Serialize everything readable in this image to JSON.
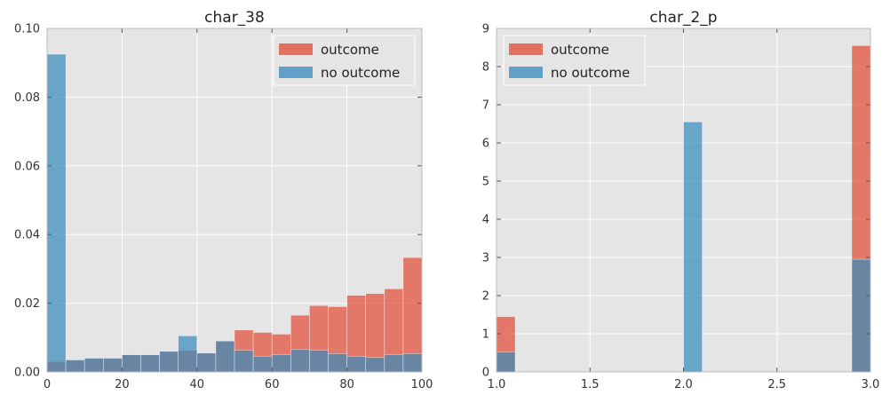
{
  "chart_data": [
    {
      "type": "bar",
      "title": "char_38",
      "xlabel": "",
      "ylabel": "",
      "xlim": [
        0,
        100
      ],
      "ylim": [
        0,
        0.1
      ],
      "xticks": [
        0,
        20,
        40,
        60,
        80,
        100
      ],
      "yticks": [
        0.0,
        0.02,
        0.04,
        0.06,
        0.08,
        0.1
      ],
      "xtick_labels": [
        "0",
        "20",
        "40",
        "60",
        "80",
        "100"
      ],
      "ytick_labels": [
        "0.00",
        "0.02",
        "0.04",
        "0.06",
        "0.08",
        "0.10"
      ],
      "grid": true,
      "legend_position": "top-right",
      "bin_edges": [
        0,
        5,
        10,
        15,
        20,
        25,
        30,
        35,
        40,
        45,
        50,
        55,
        60,
        65,
        70,
        75,
        80,
        85,
        90,
        95,
        100
      ],
      "series": [
        {
          "name": "outcome",
          "color": "#e24a33",
          "values": [
            0.003,
            0.0035,
            0.004,
            0.004,
            0.005,
            0.005,
            0.006,
            0.0063,
            0.0055,
            0.009,
            0.0122,
            0.0115,
            0.011,
            0.0165,
            0.0193,
            0.019,
            0.0223,
            0.0228,
            0.0242,
            0.0333
          ]
        },
        {
          "name": "no outcome",
          "color": "#348abd",
          "values": [
            0.0925,
            0.0035,
            0.004,
            0.004,
            0.005,
            0.005,
            0.006,
            0.0105,
            0.0055,
            0.009,
            0.0063,
            0.0045,
            0.005,
            0.0065,
            0.0063,
            0.0053,
            0.0045,
            0.0042,
            0.005,
            0.0053
          ]
        }
      ]
    },
    {
      "type": "bar",
      "title": "char_2_p",
      "xlabel": "",
      "ylabel": "",
      "xlim": [
        1.0,
        3.0
      ],
      "ylim": [
        0,
        9
      ],
      "xticks": [
        1.0,
        1.5,
        2.0,
        2.5,
        3.0
      ],
      "yticks": [
        0,
        1,
        2,
        3,
        4,
        5,
        6,
        7,
        8,
        9
      ],
      "xtick_labels": [
        "1.0",
        "1.5",
        "2.0",
        "2.5",
        "3.0"
      ],
      "ytick_labels": [
        "0",
        "1",
        "2",
        "3",
        "4",
        "5",
        "6",
        "7",
        "8",
        "9"
      ],
      "grid": true,
      "legend_position": "top-left",
      "bin_edges": [
        1.0,
        1.1,
        1.2,
        1.3,
        1.4,
        1.5,
        1.6,
        1.7,
        1.8,
        1.9,
        2.0,
        2.1,
        2.2,
        2.3,
        2.4,
        2.5,
        2.6,
        2.7,
        2.8,
        2.9,
        3.0
      ],
      "series": [
        {
          "name": "outcome",
          "color": "#e24a33",
          "values": [
            1.45,
            0,
            0,
            0,
            0,
            0,
            0,
            0,
            0,
            0,
            0,
            0,
            0,
            0,
            0,
            0,
            0,
            0,
            0,
            8.55
          ]
        },
        {
          "name": "no outcome",
          "color": "#348abd",
          "values": [
            0.52,
            0,
            0,
            0,
            0,
            0,
            0,
            0,
            0,
            0,
            6.55,
            0,
            0,
            0,
            0,
            0,
            0,
            0,
            0,
            2.95
          ]
        }
      ]
    }
  ]
}
